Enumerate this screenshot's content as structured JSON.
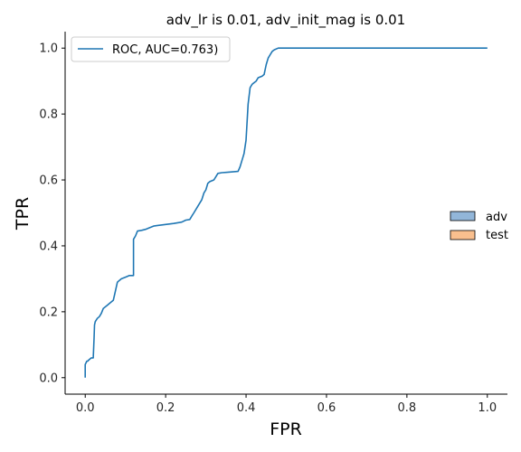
{
  "chart_data": {
    "type": "line",
    "title": "adv_lr is 0.01, adv_init_mag is 0.01",
    "xlabel": "FPR",
    "ylabel": "TPR",
    "xlim": [
      -0.05,
      1.05
    ],
    "ylim": [
      -0.05,
      1.05
    ],
    "xticks": [
      0.0,
      0.2,
      0.4,
      0.6,
      0.8,
      1.0
    ],
    "xtick_labels": [
      "0.0",
      "0.2",
      "0.4",
      "0.6",
      "0.8",
      "1.0"
    ],
    "yticks": [
      0.0,
      0.2,
      0.4,
      0.6,
      0.8,
      1.0
    ],
    "ytick_labels": [
      "0.0",
      "0.2",
      "0.4",
      "0.6",
      "0.8",
      "1.0"
    ],
    "grid": false,
    "series": [
      {
        "name": "ROC, AUC=0.763)",
        "color": "#1f77b4",
        "x": [
          0.0,
          0.0,
          0.002,
          0.004,
          0.006,
          0.01,
          0.015,
          0.02,
          0.022,
          0.023,
          0.025,
          0.03,
          0.035,
          0.04,
          0.045,
          0.05,
          0.055,
          0.06,
          0.07,
          0.08,
          0.085,
          0.09,
          0.1,
          0.11,
          0.115,
          0.12,
          0.12,
          0.125,
          0.13,
          0.14,
          0.15,
          0.16,
          0.17,
          0.18,
          0.2,
          0.22,
          0.24,
          0.25,
          0.26,
          0.265,
          0.27,
          0.28,
          0.29,
          0.295,
          0.3,
          0.305,
          0.31,
          0.32,
          0.325,
          0.33,
          0.34,
          0.35,
          0.36,
          0.37,
          0.38,
          0.385,
          0.39,
          0.395,
          0.4,
          0.405,
          0.41,
          0.415,
          0.42,
          0.425,
          0.43,
          0.44,
          0.445,
          0.45,
          0.455,
          0.46,
          0.465,
          0.47,
          0.48,
          0.49,
          0.5,
          0.6,
          0.7,
          0.8,
          0.9,
          1.0
        ],
        "y": [
          0.0,
          0.04,
          0.045,
          0.05,
          0.05,
          0.055,
          0.06,
          0.06,
          0.12,
          0.16,
          0.17,
          0.18,
          0.185,
          0.195,
          0.21,
          0.215,
          0.22,
          0.225,
          0.235,
          0.29,
          0.295,
          0.3,
          0.305,
          0.31,
          0.31,
          0.31,
          0.42,
          0.43,
          0.445,
          0.447,
          0.45,
          0.455,
          0.46,
          0.462,
          0.465,
          0.468,
          0.472,
          0.478,
          0.48,
          0.49,
          0.5,
          0.52,
          0.54,
          0.56,
          0.57,
          0.59,
          0.595,
          0.6,
          0.61,
          0.62,
          0.622,
          0.623,
          0.624,
          0.625,
          0.626,
          0.64,
          0.66,
          0.68,
          0.72,
          0.83,
          0.88,
          0.89,
          0.895,
          0.9,
          0.91,
          0.915,
          0.92,
          0.95,
          0.97,
          0.98,
          0.99,
          0.995,
          1.0,
          1.0,
          1.0,
          1.0,
          1.0,
          1.0,
          1.0,
          1.0
        ]
      }
    ],
    "legend": {
      "location": "upper left",
      "label": "ROC, AUC=0.763)"
    },
    "side_legend": {
      "location": "center right",
      "entries": [
        {
          "label": "adv",
          "color": "#92b6d9",
          "edge": "#000000"
        },
        {
          "label": "test",
          "color": "#f9bf8e",
          "edge": "#000000"
        }
      ]
    }
  }
}
